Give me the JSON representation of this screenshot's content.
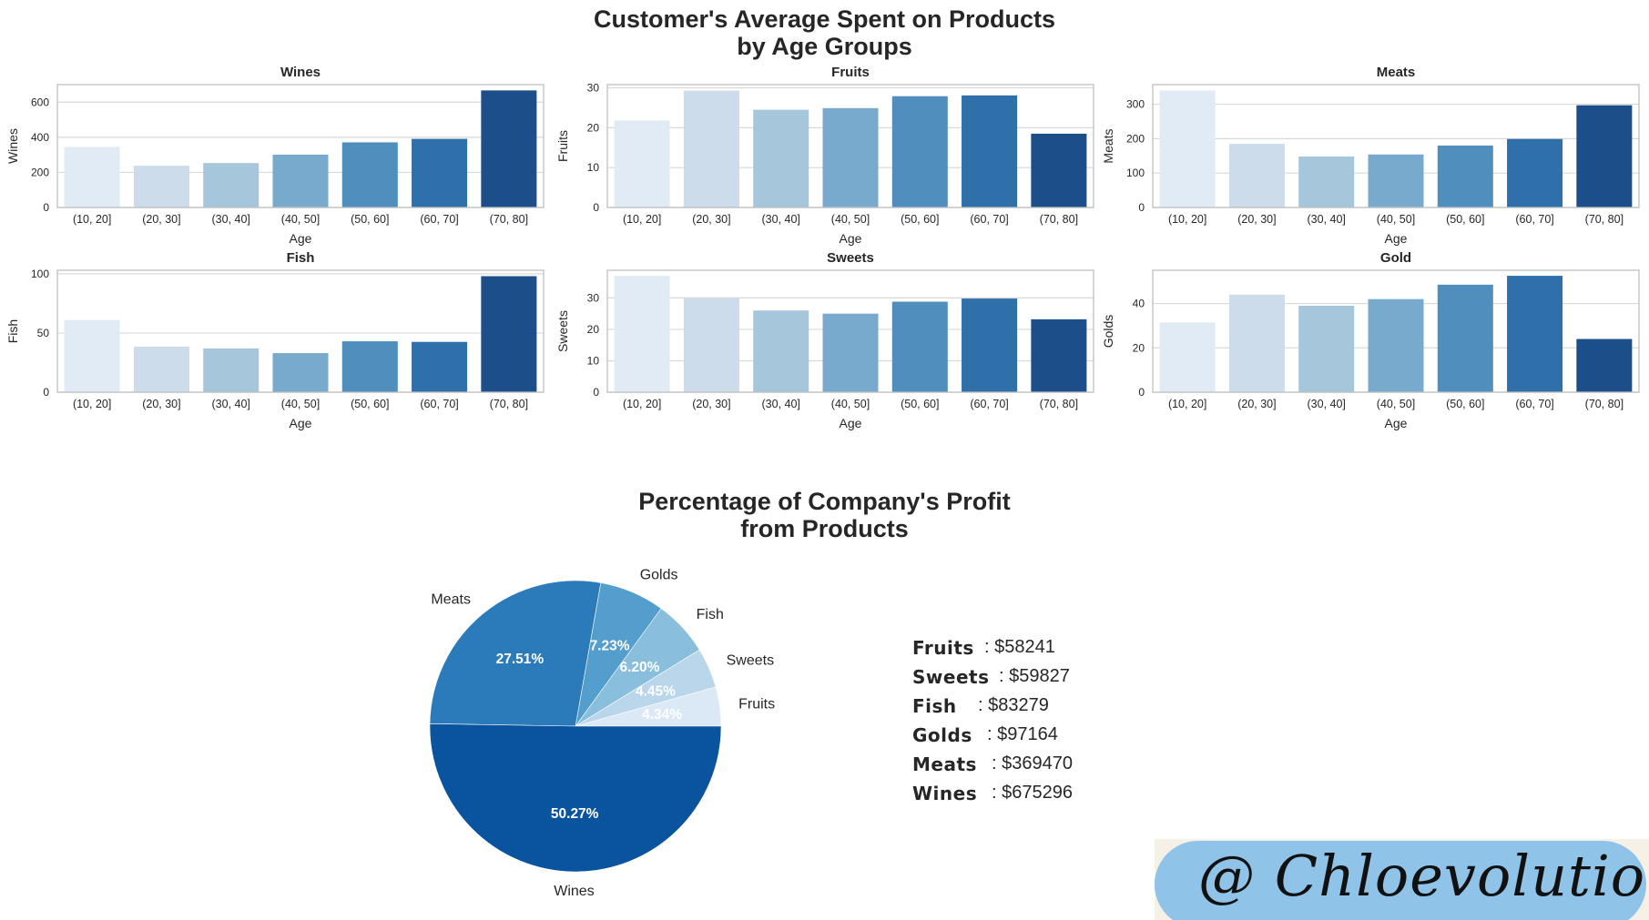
{
  "titles": {
    "main_line1": "Customer's Average Spent on Products",
    "main_line2": "by Age Groups",
    "pie_line1": "Percentage of Company's Profit",
    "pie_line2": "from Products"
  },
  "colors": {
    "palette": [
      "#e1ebf5",
      "#ccdcea",
      "#a6c7db",
      "#78aacd",
      "#508ebe",
      "#3070aa",
      "#1c4f8a"
    ],
    "pie": [
      "#dbe9f6",
      "#bad6eb",
      "#89bedc",
      "#539ecd",
      "#2b7bba",
      "#0a539e"
    ],
    "grid": "#d9d9d9",
    "axes": "#bfbfbf",
    "badge_pill": "#8fc3e8"
  },
  "chart_data": [
    {
      "type": "bar",
      "title": "Wines",
      "xlabel": "Age",
      "ylabel": "Wines",
      "categories": [
        "(10, 20]",
        "(20, 30]",
        "(30, 40]",
        "(40, 50]",
        "(50, 60]",
        "(60, 70]",
        "(70, 80]"
      ],
      "values": [
        345,
        238,
        253,
        301,
        371,
        391,
        667
      ],
      "ylim": [
        0,
        700
      ],
      "yticks": [
        0,
        200,
        400,
        600
      ],
      "yticklabels": [
        "0",
        "200",
        "400",
        "600"
      ]
    },
    {
      "type": "bar",
      "title": "Fruits",
      "xlabel": "Age",
      "ylabel": "Fruits",
      "categories": [
        "(10, 20]",
        "(20, 30]",
        "(30, 40]",
        "(40, 50]",
        "(50, 60]",
        "(60, 70]",
        "(70, 80]"
      ],
      "values": [
        21.8,
        29.3,
        24.5,
        24.9,
        27.9,
        28.1,
        18.5
      ],
      "ylim": [
        0,
        30.8
      ],
      "yticks": [
        0,
        10,
        20,
        30
      ],
      "yticklabels": [
        "0",
        "10",
        "20",
        "30"
      ]
    },
    {
      "type": "bar",
      "title": "Meats",
      "xlabel": "Age",
      "ylabel": "Meats",
      "categories": [
        "(10, 20]",
        "(20, 30]",
        "(30, 40]",
        "(40, 50]",
        "(50, 60]",
        "(60, 70]",
        "(70, 80]"
      ],
      "values": [
        340,
        185,
        148,
        154,
        180,
        199,
        297
      ],
      "ylim": [
        0,
        357
      ],
      "yticks": [
        0,
        100,
        200,
        300
      ],
      "yticklabels": [
        "0",
        "100",
        "200",
        "300"
      ]
    },
    {
      "type": "bar",
      "title": "Fish",
      "xlabel": "Age",
      "ylabel": "Fish",
      "categories": [
        "(10, 20]",
        "(20, 30]",
        "(30, 40]",
        "(40, 50]",
        "(50, 60]",
        "(60, 70]",
        "(70, 80]"
      ],
      "values": [
        61,
        38.5,
        37,
        33,
        43,
        42.5,
        98
      ],
      "ylim": [
        0,
        103
      ],
      "yticks": [
        0,
        50,
        100
      ],
      "yticklabels": [
        "0",
        "50",
        "100"
      ]
    },
    {
      "type": "bar",
      "title": "Sweets",
      "xlabel": "Age",
      "ylabel": "Sweets",
      "categories": [
        "(10, 20]",
        "(20, 30]",
        "(30, 40]",
        "(40, 50]",
        "(50, 60]",
        "(60, 70]",
        "(70, 80]"
      ],
      "values": [
        37,
        29.8,
        26,
        25,
        28.8,
        29.8,
        23.2
      ],
      "ylim": [
        0,
        38.8
      ],
      "yticks": [
        0,
        10,
        20,
        30
      ],
      "yticklabels": [
        "0",
        "10",
        "20",
        "30"
      ]
    },
    {
      "type": "bar",
      "title": "Gold",
      "xlabel": "Age",
      "ylabel": "Golds",
      "categories": [
        "(10, 20]",
        "(20, 30]",
        "(30, 40]",
        "(40, 50]",
        "(50, 60]",
        "(60, 70]",
        "(70, 80]"
      ],
      "values": [
        31.5,
        44,
        39,
        42,
        48.5,
        52.5,
        24
      ],
      "ylim": [
        0,
        55
      ],
      "yticks": [
        0,
        20,
        40
      ],
      "yticklabels": [
        "0",
        "20",
        "40"
      ]
    },
    {
      "type": "pie",
      "labels": [
        "Fruits",
        "Sweets",
        "Fish",
        "Golds",
        "Meats",
        "Wines"
      ],
      "values": [
        4.34,
        4.45,
        6.2,
        7.23,
        27.51,
        50.27
      ],
      "autopct": [
        "4.34%",
        "4.45%",
        "6.20%",
        "7.23%",
        "27.51%",
        "50.27%"
      ]
    }
  ],
  "profit_list": [
    {
      "name": "Fruits",
      "value": ": $58241"
    },
    {
      "name": "Sweets",
      "value": ": $59827"
    },
    {
      "name": "Fish",
      "value": ": $83279"
    },
    {
      "name": "Golds",
      "value": ": $97164"
    },
    {
      "name": "Meats",
      "value": ": $369470"
    },
    {
      "name": "Wines",
      "value": ": $675296"
    }
  ],
  "badge": {
    "text": "@ Chloevolution"
  }
}
